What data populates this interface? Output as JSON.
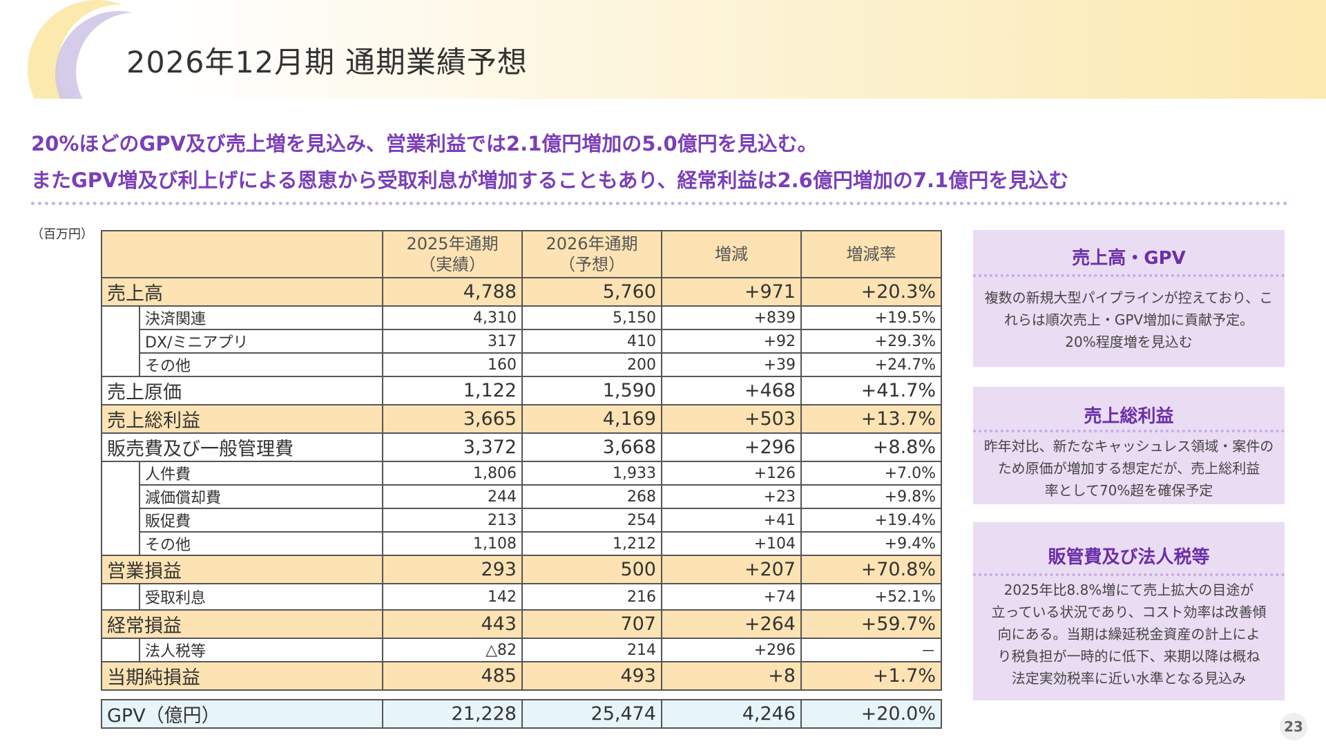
{
  "title": "2026年12月期 通期業績予想",
  "headline": {
    "line1": "20%ほどのGPV及び売上増を見込み、営業利益では2.1億円増加の5.0億円を見込む。",
    "line2": "またGPV増及び利上げによる恩恵から受取利息が増加することもあり、経常利益は2.6億円増加の7.1億円を見込む"
  },
  "unit": "（百万円）",
  "table": {
    "headers": {
      "col1": "2025年通期\n（実績）",
      "col2": "2026年通期\n（予想）",
      "col3": "増減",
      "col4": "増減率"
    },
    "rows": [
      {
        "label": "売上高",
        "v1": "4,788",
        "v2": "5,760",
        "v3": "+971",
        "v4": "+20.3%"
      },
      {
        "label": "決済関連",
        "v1": "4,310",
        "v2": "5,150",
        "v3": "+839",
        "v4": "+19.5%"
      },
      {
        "label": "DX/ミニアプリ",
        "v1": "317",
        "v2": "410",
        "v3": "+92",
        "v4": "+29.3%"
      },
      {
        "label": "その他",
        "v1": "160",
        "v2": "200",
        "v3": "+39",
        "v4": "+24.7%"
      },
      {
        "label": "売上原価",
        "v1": "1,122",
        "v2": "1,590",
        "v3": "+468",
        "v4": "+41.7%"
      },
      {
        "label": "売上総利益",
        "v1": "3,665",
        "v2": "4,169",
        "v3": "+503",
        "v4": "+13.7%"
      },
      {
        "label": "販売費及び一般管理費",
        "v1": "3,372",
        "v2": "3,668",
        "v3": "+296",
        "v4": "+8.8%"
      },
      {
        "label": "人件費",
        "v1": "1,806",
        "v2": "1,933",
        "v3": "+126",
        "v4": "+7.0%"
      },
      {
        "label": "減価償却費",
        "v1": "244",
        "v2": "268",
        "v3": "+23",
        "v4": "+9.8%"
      },
      {
        "label": "販促費",
        "v1": "213",
        "v2": "254",
        "v3": "+41",
        "v4": "+19.4%"
      },
      {
        "label": "その他",
        "v1": "1,108",
        "v2": "1,212",
        "v3": "+104",
        "v4": "+9.4%"
      },
      {
        "label": "営業損益",
        "v1": "293",
        "v2": "500",
        "v3": "+207",
        "v4": "+70.8%"
      },
      {
        "label": "受取利息",
        "v1": "142",
        "v2": "216",
        "v3": "+74",
        "v4": "+52.1%"
      },
      {
        "label": "経常損益",
        "v1": "443",
        "v2": "707",
        "v3": "+264",
        "v4": "+59.7%"
      },
      {
        "label": "法人税等",
        "v1": "△82",
        "v2": "214",
        "v3": "+296",
        "v4": "－"
      },
      {
        "label": "当期純損益",
        "v1": "485",
        "v2": "493",
        "v3": "+8",
        "v4": "+1.7%"
      }
    ],
    "gpv": {
      "label": "GPV（億円）",
      "v1": "21,228",
      "v2": "25,474",
      "v3": "4,246",
      "v4": "+20.0%"
    }
  },
  "cards": [
    {
      "title": "売上高・GPV",
      "lines": [
        "複数の新規大型パイプラインが控えており、こ",
        "れらは順次売上・GPV増加に貢献予定。",
        "20%程度増を見込む"
      ]
    },
    {
      "title": "売上総利益",
      "lines": [
        "昨年対比、新たなキャッシュレス領域・案件の",
        "ため原価が増加する想定だが、売上総利益",
        "率として70%超を確保予定"
      ]
    },
    {
      "title": "販管費及び法人税等",
      "lines": [
        "2025年比8.8%増にて売上拡大の目途が",
        "立っている状況であり、コスト効率は改善傾",
        "向にある。当期は繰延税金資産の計上によ",
        "り税負担が一時的に低下、来期以降は概ね",
        "法定実効税率に近い水準となる見込み"
      ]
    }
  ],
  "page_number": "23",
  "colors": {
    "accent": "#7a3fb8",
    "table_highlight": "#fde3b3",
    "gpv_row": "#e7f5fb",
    "card_bg": "#eadcf3"
  }
}
